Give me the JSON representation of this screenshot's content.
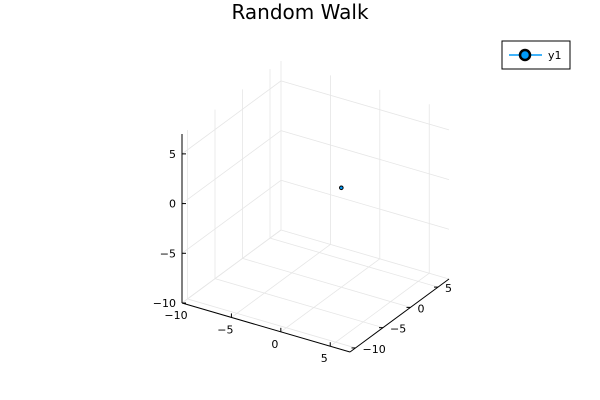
{
  "chart_data": {
    "type": "scatter",
    "title": "Random Walk",
    "xlabel": "",
    "ylabel": "",
    "zlabel": "",
    "xlim": [
      -10,
      7
    ],
    "ylim": [
      -11,
      7
    ],
    "zlim": [
      -10,
      7
    ],
    "x_ticks": [
      "−10",
      "−5",
      "0",
      "5"
    ],
    "y_ticks": [
      "−10",
      "−5",
      "0",
      "5"
    ],
    "z_ticks": [
      "−10",
      "−5",
      "0",
      "5"
    ],
    "grid": true,
    "legend_position": "top-right",
    "series": [
      {
        "name": "y1",
        "color": "#009af9",
        "marker": "circle",
        "points": [
          {
            "x": 0,
            "y": 0,
            "z": 0
          }
        ]
      }
    ]
  }
}
